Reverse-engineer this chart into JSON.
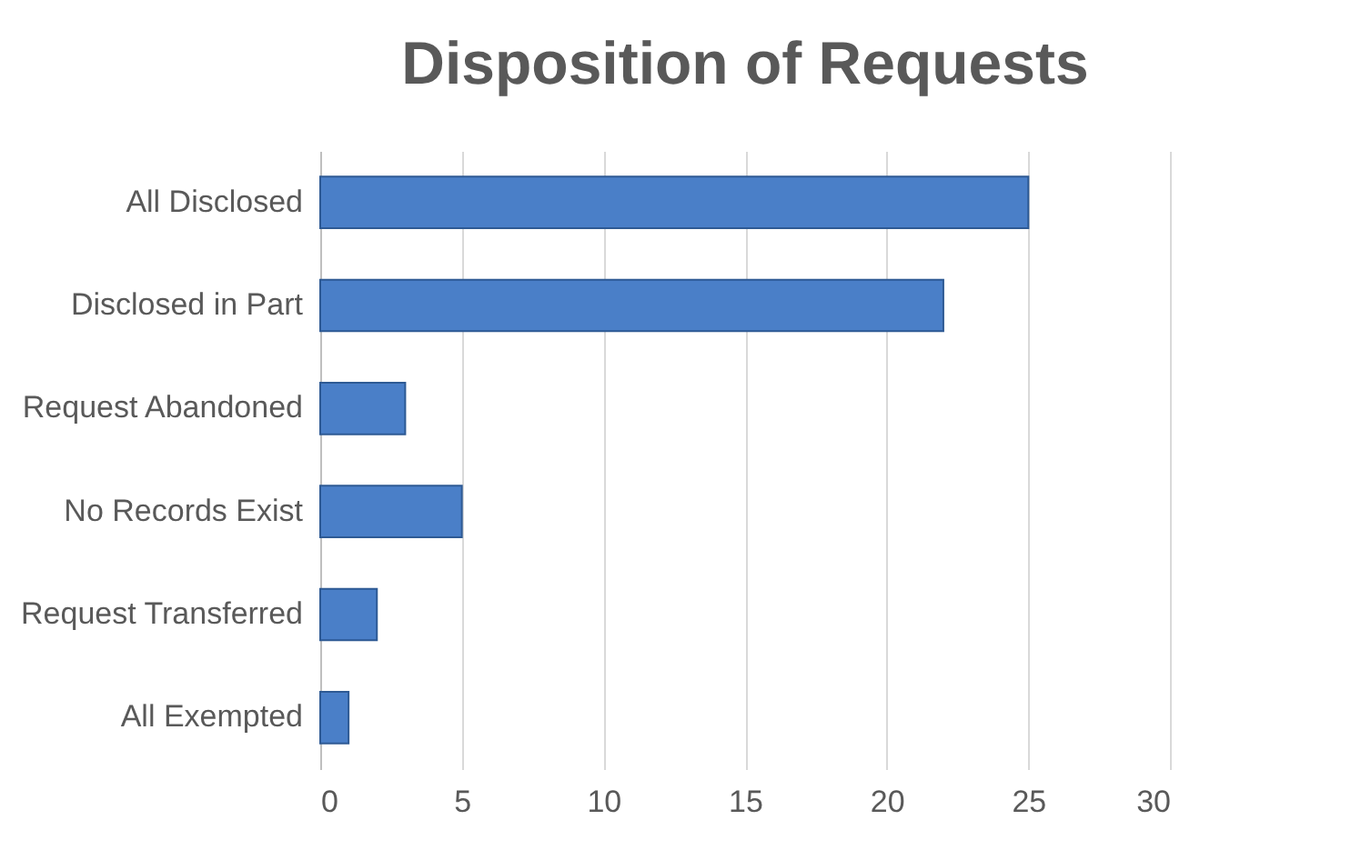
{
  "chart_data": {
    "type": "bar",
    "title": "Disposition of Requests",
    "orientation": "horizontal",
    "categories": [
      "All Disclosed",
      "Disclosed in Part",
      "Request Abandoned",
      "No Records Exist",
      "Request Transferred",
      "All Exempted"
    ],
    "values": [
      25,
      22,
      3,
      5,
      2,
      1
    ],
    "color": "#4a7fc8",
    "xlim": [
      0,
      30
    ],
    "xticks": [
      0,
      5,
      10,
      15,
      20,
      25,
      30
    ],
    "grid": "x"
  }
}
